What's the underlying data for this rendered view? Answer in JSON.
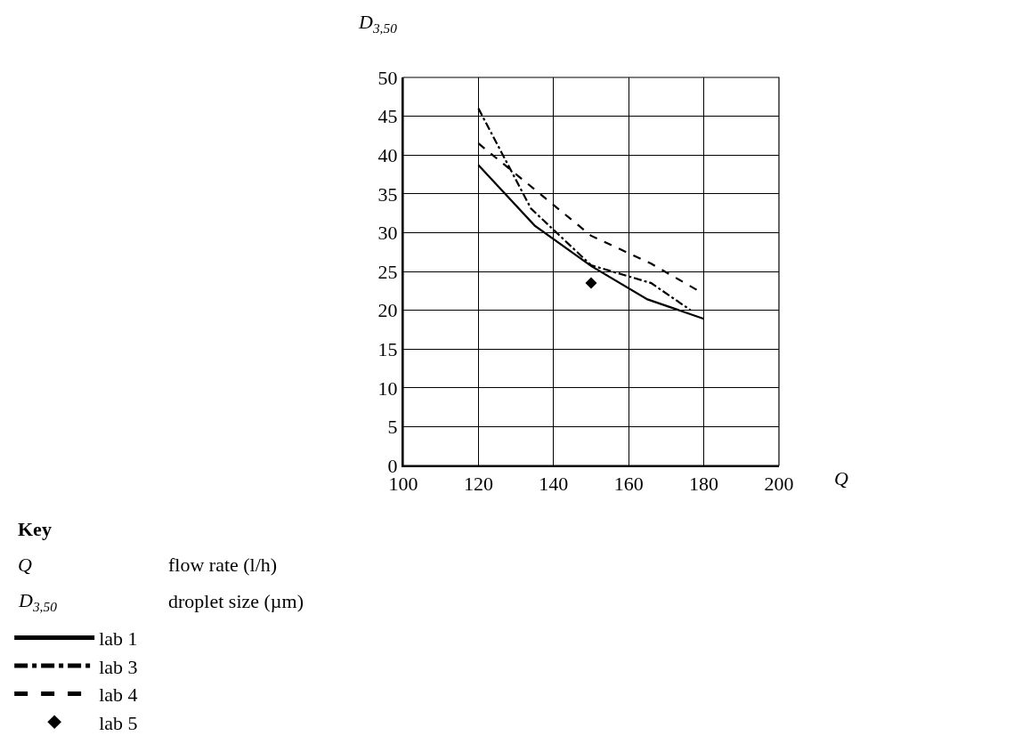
{
  "chart_data": {
    "type": "line",
    "xlabel": "Q",
    "ylabel": "D$_{3,50}$",
    "xlim": [
      100,
      200
    ],
    "xticks": [
      100,
      120,
      140,
      160,
      180,
      200
    ],
    "ylim": [
      0,
      50
    ],
    "yticks": [
      0,
      5,
      10,
      15,
      20,
      25,
      30,
      35,
      40,
      45,
      50
    ],
    "grid": true,
    "legend": "bottom left",
    "legend_title": "Key",
    "annotations": [
      "Q",
      "flow rate (l/h)",
      "D$_{3,50}$",
      "droplet size (µm)"
    ],
    "series": [
      {
        "name": "lab 1",
        "color": "#000000",
        "line_style": "solid",
        "marker": "none",
        "x": [
          120,
          135,
          150,
          165,
          180
        ],
        "values": [
          38.7,
          30.9,
          25.7,
          21.4,
          18.9
        ]
      },
      {
        "name": "lab 3",
        "color": "#000000",
        "line_style": "dashdot",
        "marker": "none",
        "x": [
          120,
          134,
          150,
          166,
          176.5
        ],
        "values": [
          46.0,
          33.1,
          25.8,
          23.5,
          20.0
        ]
      },
      {
        "name": "lab 4",
        "color": "#000000",
        "line_style": "dashed",
        "marker": "none",
        "x": [
          120,
          150,
          166,
          180
        ],
        "values": [
          41.5,
          29.6,
          26.0,
          22.1
        ]
      },
      {
        "name": "lab 5",
        "color": "#000000",
        "type": "scatter",
        "marker": "diamond",
        "x": [
          150
        ],
        "values": [
          23.5
        ]
      }
    ]
  }
}
